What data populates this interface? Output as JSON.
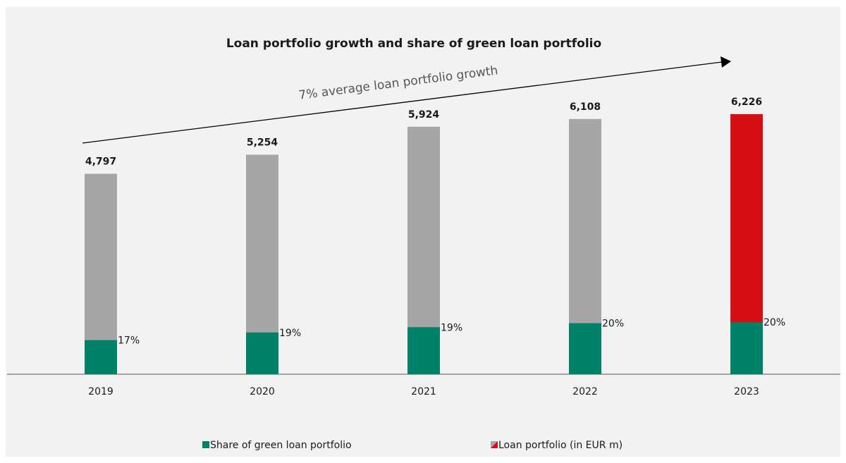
{
  "chart_data": {
    "type": "bar",
    "title": "Loan portfolio growth and share of green loan portfolio",
    "annotation": "7% average loan portfolio growth",
    "categories": [
      "2019",
      "2020",
      "2021",
      "2022",
      "2023"
    ],
    "series": [
      {
        "name": "Share of green loan portfolio",
        "color": "#008268",
        "values": [
          17,
          19,
          19,
          20,
          20
        ],
        "value_labels": [
          "17%",
          "19%",
          "19%",
          "20%",
          "20%"
        ]
      },
      {
        "name": "Loan portfolio (in EUR m)",
        "colors": [
          "#a6a6a6",
          "#a6a6a6",
          "#a6a6a6",
          "#a6a6a6",
          "#d50f14"
        ],
        "values": [
          4797,
          5254,
          5924,
          6108,
          6226
        ],
        "value_labels": [
          "4,797",
          "5,254",
          "5,924",
          "6,108",
          "6,226"
        ]
      }
    ],
    "ylim": [
      0,
      7000
    ]
  }
}
